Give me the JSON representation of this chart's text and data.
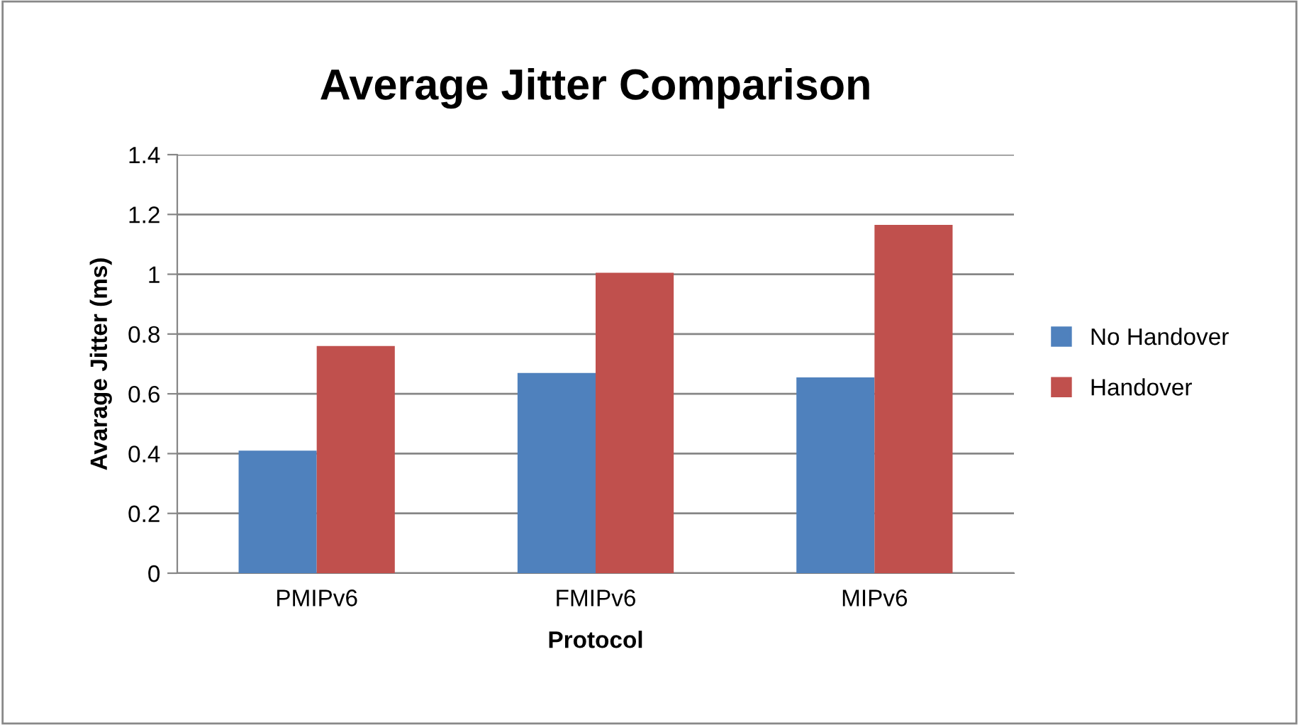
{
  "chart_data": {
    "type": "bar",
    "title": "Average Jitter Comparison",
    "xlabel": "Protocol",
    "ylabel": "Avarage Jitter (ms)",
    "categories": [
      "PMIPv6",
      "FMIPv6",
      "MIPv6"
    ],
    "series": [
      {
        "name": "No Handover",
        "color": "#4f81bd",
        "values": [
          0.41,
          0.67,
          0.655
        ]
      },
      {
        "name": "Handover",
        "color": "#c0504d",
        "values": [
          0.76,
          1.005,
          1.165
        ]
      }
    ],
    "ylim": [
      0,
      1.4
    ],
    "yticks": [
      0,
      0.2,
      0.4,
      0.6,
      0.8,
      1,
      1.2,
      1.4
    ],
    "grid": "y",
    "legend": "right"
  }
}
